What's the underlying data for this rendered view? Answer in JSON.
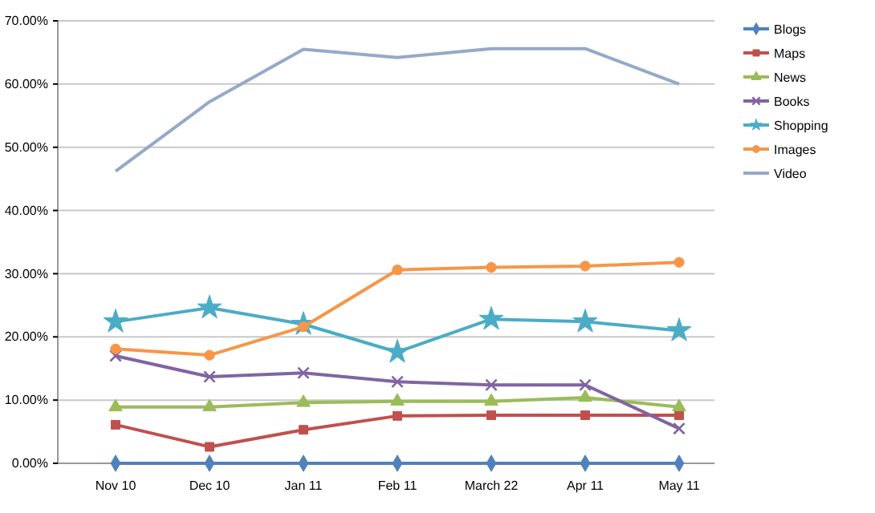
{
  "chart_data": {
    "type": "line",
    "categories": [
      "Nov 10",
      "Dec 10",
      "Jan 11",
      "Feb 11",
      "March 22",
      "Apr 11",
      "May 11"
    ],
    "ylim": [
      0,
      70
    ],
    "yticks": [
      {
        "value": 0,
        "label": "0.00%"
      },
      {
        "value": 10,
        "label": "10.00%"
      },
      {
        "value": 20,
        "label": "20.00%"
      },
      {
        "value": 30,
        "label": "30.00%"
      },
      {
        "value": 40,
        "label": "40.00%"
      },
      {
        "value": 50,
        "label": "50.00%"
      },
      {
        "value": 60,
        "label": "60.00%"
      },
      {
        "value": 70,
        "label": "70.00%"
      }
    ],
    "grid": "y",
    "legend": "right",
    "line_style": "solid",
    "series": [
      {
        "name": "Blogs",
        "color": "#4f81bd",
        "marker": "diamond",
        "values": [
          0,
          0,
          0,
          0,
          0,
          0,
          0
        ]
      },
      {
        "name": "Maps",
        "color": "#c0504d",
        "marker": "square",
        "values": [
          6.1,
          2.6,
          5.3,
          7.5,
          7.6,
          7.6,
          7.6
        ]
      },
      {
        "name": "News",
        "color": "#9bbb59",
        "marker": "triangle",
        "values": [
          8.9,
          8.9,
          9.6,
          9.8,
          9.8,
          10.4,
          8.9
        ]
      },
      {
        "name": "Books",
        "color": "#8064a2",
        "marker": "cross",
        "values": [
          17.0,
          13.7,
          14.3,
          12.9,
          12.4,
          12.4,
          5.5
        ]
      },
      {
        "name": "Shopping",
        "color": "#4bacc6",
        "marker": "star",
        "values": [
          22.4,
          24.6,
          22.0,
          17.6,
          22.8,
          22.4,
          21.0
        ]
      },
      {
        "name": "Images",
        "color": "#f79646",
        "marker": "circle",
        "values": [
          18.1,
          17.1,
          21.6,
          30.6,
          31.0,
          31.2,
          31.8
        ]
      },
      {
        "name": "Video",
        "color": "#95a9c8",
        "marker": "none",
        "values": [
          46.2,
          57.2,
          65.5,
          64.2,
          65.6,
          65.6,
          60.0
        ]
      }
    ]
  }
}
